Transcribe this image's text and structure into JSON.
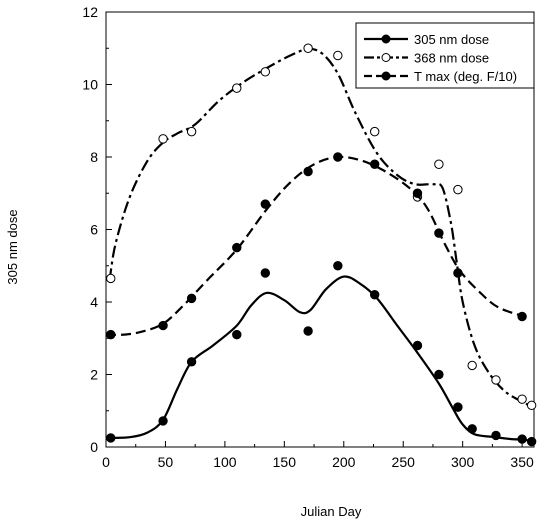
{
  "chart_data": {
    "type": "scatter",
    "xlabel": "Julian Day",
    "ylabel": "305 nm dose",
    "xlim": [
      0,
      360
    ],
    "ylim": [
      0,
      12
    ],
    "xticks": [
      "0",
      "50",
      "100",
      "150",
      "200",
      "250",
      "300",
      "350"
    ],
    "yticks": [
      "0",
      "2",
      "4",
      "6",
      "8",
      "10",
      "12"
    ],
    "grid": false,
    "legend_position": "top-right",
    "series": [
      {
        "name": "305 nm dose",
        "marker": "filled-circle",
        "line_style": "solid",
        "points": [
          [
            4,
            0.25
          ],
          [
            48,
            0.72
          ],
          [
            72,
            2.35
          ],
          [
            110,
            3.1
          ],
          [
            134,
            4.8
          ],
          [
            170,
            3.2
          ],
          [
            195,
            5.0
          ],
          [
            226,
            4.2
          ],
          [
            262,
            2.8
          ],
          [
            280,
            2.0
          ],
          [
            296,
            1.1
          ],
          [
            308,
            0.5
          ],
          [
            328,
            0.32
          ],
          [
            350,
            0.22
          ],
          [
            358,
            0.15
          ]
        ],
        "curve": [
          [
            0,
            0.25
          ],
          [
            20,
            0.27
          ],
          [
            35,
            0.4
          ],
          [
            48,
            0.75
          ],
          [
            60,
            1.6
          ],
          [
            72,
            2.35
          ],
          [
            90,
            2.8
          ],
          [
            110,
            3.35
          ],
          [
            122,
            3.9
          ],
          [
            135,
            4.25
          ],
          [
            150,
            4.05
          ],
          [
            163,
            3.72
          ],
          [
            172,
            3.78
          ],
          [
            185,
            4.35
          ],
          [
            200,
            4.7
          ],
          [
            214,
            4.5
          ],
          [
            228,
            4.1
          ],
          [
            245,
            3.35
          ],
          [
            262,
            2.6
          ],
          [
            280,
            1.75
          ],
          [
            292,
            1.05
          ],
          [
            300,
            0.62
          ],
          [
            310,
            0.35
          ],
          [
            325,
            0.28
          ],
          [
            340,
            0.22
          ],
          [
            352,
            0.2
          ],
          [
            360,
            0.15
          ]
        ]
      },
      {
        "name": "368 nm dose",
        "marker": "open-circle",
        "line_style": "dash-dot",
        "points": [
          [
            4,
            4.65
          ],
          [
            48,
            8.5
          ],
          [
            72,
            8.7
          ],
          [
            110,
            9.9
          ],
          [
            134,
            10.35
          ],
          [
            170,
            11.0
          ],
          [
            195,
            10.8
          ],
          [
            226,
            8.7
          ],
          [
            262,
            6.9
          ],
          [
            280,
            7.8
          ],
          [
            296,
            7.1
          ],
          [
            308,
            2.25
          ],
          [
            328,
            1.85
          ],
          [
            350,
            1.32
          ],
          [
            358,
            1.15
          ]
        ],
        "curve": [
          [
            3,
            4.6
          ],
          [
            8,
            5.6
          ],
          [
            20,
            6.9
          ],
          [
            35,
            7.9
          ],
          [
            48,
            8.4
          ],
          [
            60,
            8.65
          ],
          [
            75,
            8.9
          ],
          [
            95,
            9.55
          ],
          [
            115,
            10.05
          ],
          [
            135,
            10.45
          ],
          [
            155,
            10.8
          ],
          [
            170,
            10.98
          ],
          [
            182,
            10.85
          ],
          [
            195,
            10.3
          ],
          [
            210,
            9.2
          ],
          [
            228,
            8.1
          ],
          [
            245,
            7.5
          ],
          [
            260,
            7.25
          ],
          [
            275,
            7.25
          ],
          [
            283,
            7.15
          ],
          [
            290,
            6.2
          ],
          [
            295,
            5.1
          ],
          [
            300,
            4.0
          ],
          [
            310,
            2.8
          ],
          [
            322,
            2.05
          ],
          [
            335,
            1.55
          ],
          [
            348,
            1.28
          ],
          [
            356,
            1.15
          ]
        ]
      },
      {
        "name": "T max (deg. F/10)",
        "marker": "filled-circle",
        "line_style": "dashed",
        "points": [
          [
            4,
            3.1
          ],
          [
            48,
            3.35
          ],
          [
            72,
            4.1
          ],
          [
            110,
            5.5
          ],
          [
            134,
            6.7
          ],
          [
            170,
            7.6
          ],
          [
            195,
            8.0
          ],
          [
            226,
            7.8
          ],
          [
            262,
            7.0
          ],
          [
            280,
            5.9
          ],
          [
            296,
            4.8
          ],
          [
            350,
            3.6
          ]
        ],
        "curve": [
          [
            0,
            3.1
          ],
          [
            15,
            3.1
          ],
          [
            30,
            3.18
          ],
          [
            48,
            3.4
          ],
          [
            65,
            3.9
          ],
          [
            85,
            4.6
          ],
          [
            110,
            5.45
          ],
          [
            135,
            6.55
          ],
          [
            155,
            7.3
          ],
          [
            175,
            7.8
          ],
          [
            195,
            8.0
          ],
          [
            215,
            7.9
          ],
          [
            235,
            7.6
          ],
          [
            255,
            7.15
          ],
          [
            270,
            6.6
          ],
          [
            285,
            5.6
          ],
          [
            298,
            4.85
          ],
          [
            315,
            4.25
          ],
          [
            330,
            3.85
          ],
          [
            350,
            3.62
          ]
        ]
      }
    ]
  }
}
